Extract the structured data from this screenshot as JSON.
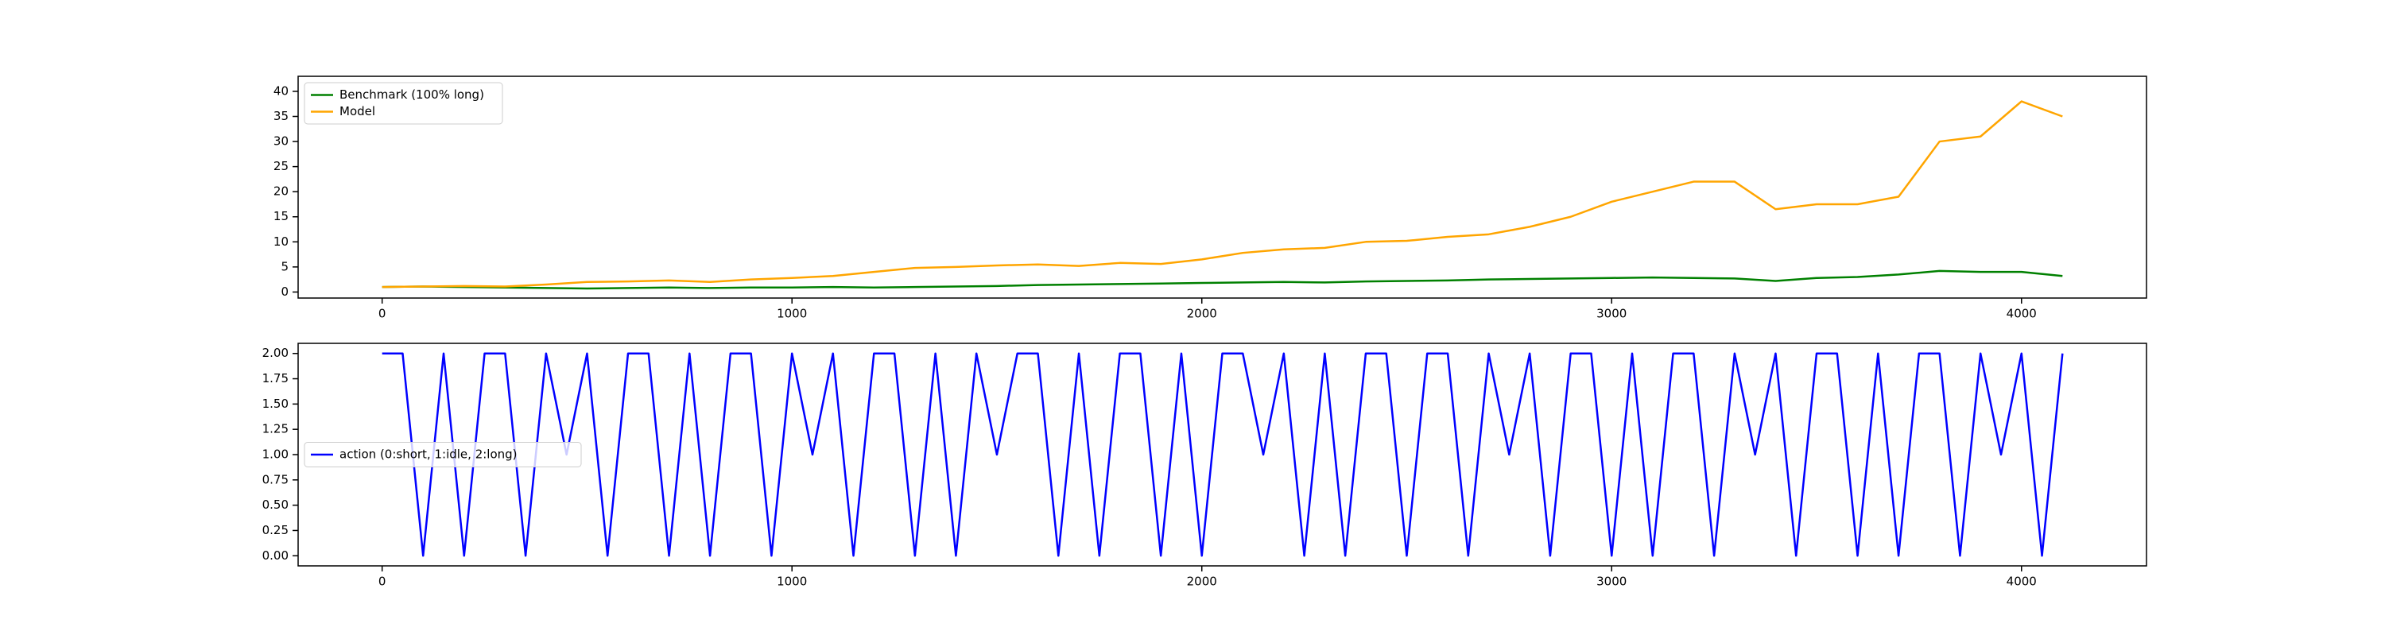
{
  "chart_data": [
    {
      "type": "line",
      "legend": "upper left",
      "x": [
        0,
        100,
        200,
        300,
        400,
        500,
        600,
        700,
        800,
        900,
        1000,
        1100,
        1200,
        1300,
        1400,
        1500,
        1600,
        1700,
        1800,
        1900,
        2000,
        2100,
        2200,
        2300,
        2400,
        2500,
        2600,
        2700,
        2800,
        2900,
        3000,
        3100,
        3200,
        3300,
        3400,
        3500,
        3600,
        3700,
        3800,
        3900,
        4000,
        4100
      ],
      "series": [
        {
          "name": "Benchmark (100% long)",
          "color": "#008000",
          "values": [
            1,
            1.1,
            1,
            0.9,
            0.8,
            0.7,
            0.8,
            0.9,
            0.8,
            0.9,
            0.9,
            1,
            0.9,
            1,
            1.1,
            1.2,
            1.4,
            1.5,
            1.6,
            1.7,
            1.8,
            1.9,
            2,
            1.9,
            2.1,
            2.2,
            2.3,
            2.5,
            2.6,
            2.7,
            2.8,
            2.9,
            2.8,
            2.7,
            2.2,
            2.8,
            3,
            3.5,
            4.2,
            4,
            4,
            3.2
          ]
        },
        {
          "name": "Model",
          "color": "#ffa500",
          "values": [
            1,
            1.1,
            1.2,
            1.1,
            1.5,
            2,
            2.1,
            2.3,
            2,
            2.5,
            2.8,
            3.2,
            4,
            4.8,
            5,
            5.3,
            5.5,
            5.2,
            5.8,
            5.6,
            6.5,
            7.8,
            8.5,
            8.8,
            10,
            10.2,
            11,
            11.5,
            13,
            15,
            18,
            20,
            22,
            22,
            16.5,
            17.5,
            17.5,
            19,
            30,
            31,
            38,
            35
          ]
        }
      ],
      "xlim": [
        -205,
        4305
      ],
      "ylim": [
        -1.2,
        43
      ],
      "xticks": [
        0,
        1000,
        2000,
        3000,
        4000
      ],
      "yticks": [
        0,
        5,
        10,
        15,
        20,
        25,
        30,
        35,
        40
      ]
    },
    {
      "type": "line",
      "legend": "center left",
      "x": [
        0,
        50,
        100,
        150,
        200,
        250,
        300,
        350,
        400,
        450,
        500,
        550,
        600,
        650,
        700,
        750,
        800,
        850,
        900,
        950,
        1000,
        1050,
        1100,
        1150,
        1200,
        1250,
        1300,
        1350,
        1400,
        1450,
        1500,
        1550,
        1600,
        1650,
        1700,
        1750,
        1800,
        1850,
        1900,
        1950,
        2000,
        2050,
        2100,
        2150,
        2200,
        2250,
        2300,
        2350,
        2400,
        2450,
        2500,
        2550,
        2600,
        2650,
        2700,
        2750,
        2800,
        2850,
        2900,
        2950,
        3000,
        3050,
        3100,
        3150,
        3200,
        3250,
        3300,
        3350,
        3400,
        3450,
        3500,
        3550,
        3600,
        3650,
        3700,
        3750,
        3800,
        3850,
        3900,
        3950,
        4000,
        4050,
        4100
      ],
      "series": [
        {
          "name": "action (0:short, 1:idle, 2:long)",
          "color": "#0000ff",
          "values": [
            2,
            2,
            0,
            2,
            0,
            2,
            2,
            0,
            2,
            1,
            2,
            0,
            2,
            2,
            0,
            2,
            0,
            2,
            2,
            0,
            2,
            1,
            2,
            0,
            2,
            2,
            0,
            2,
            0,
            2,
            1,
            2,
            2,
            0,
            2,
            0,
            2,
            2,
            0,
            2,
            0,
            2,
            2,
            1,
            2,
            0,
            2,
            0,
            2,
            2,
            0,
            2,
            2,
            0,
            2,
            1,
            2,
            0,
            2,
            2,
            0,
            2,
            0,
            2,
            2,
            0,
            2,
            1,
            2,
            0,
            2,
            2,
            0,
            2,
            0,
            2,
            2,
            0,
            2,
            1,
            2,
            0,
            2
          ]
        }
      ],
      "xlim": [
        -205,
        4305
      ],
      "ylim": [
        -0.1,
        2.1
      ],
      "xticks": [
        0,
        1000,
        2000,
        3000,
        4000
      ],
      "yticks": [
        {
          "value": 0,
          "label": "0.00"
        },
        {
          "value": 0.25,
          "label": "0.25"
        },
        {
          "value": 0.5,
          "label": "0.50"
        },
        {
          "value": 0.75,
          "label": "0.75"
        },
        {
          "value": 1,
          "label": "1.00"
        },
        {
          "value": 1.25,
          "label": "1.25"
        },
        {
          "value": 1.5,
          "label": "1.50"
        },
        {
          "value": 1.75,
          "label": "1.75"
        },
        {
          "value": 2,
          "label": "2.00"
        }
      ]
    }
  ]
}
